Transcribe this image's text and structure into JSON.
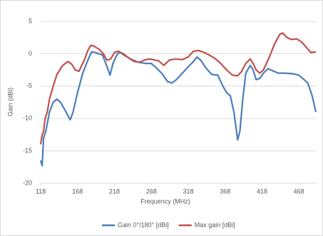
{
  "chart_data": {
    "type": "line",
    "x_label": "Frequency (MHz)",
    "y_label": "Gain (dBi)",
    "xlim": [
      118,
      491
    ],
    "xticks": [
      118,
      168,
      218,
      268,
      318,
      368,
      418,
      468
    ],
    "ylim": [
      -20,
      5
    ],
    "yticks": [
      -20,
      -15,
      -10,
      -5,
      0,
      5
    ],
    "grid": true,
    "legend": "bottom",
    "series": [
      {
        "name": "Gain 0°/180° [dBi]",
        "color": "#4a7ebb",
        "x": [
          118,
          120,
          122,
          125,
          130,
          135,
          140,
          145,
          150,
          158,
          162,
          168,
          175,
          182,
          187,
          192,
          197,
          202,
          208,
          212,
          216,
          222,
          226,
          232,
          240,
          250,
          260,
          268,
          275,
          282,
          290,
          296,
          302,
          310,
          318,
          325,
          330,
          335,
          342,
          350,
          358,
          365,
          370,
          375,
          380,
          385,
          388,
          392,
          396,
          402,
          406,
          410,
          415,
          420,
          426,
          432,
          440,
          450,
          460,
          468,
          475,
          480,
          486,
          491
        ],
        "values": [
          -16.5,
          -17.3,
          -13,
          -12,
          -9,
          -7.5,
          -7,
          -7.5,
          -8.5,
          -10.2,
          -9,
          -6,
          -3,
          -1,
          0.3,
          0.2,
          0,
          -0.2,
          -2,
          -3.3,
          -1.5,
          0,
          0.2,
          -0.3,
          -0.8,
          -1.3,
          -1.5,
          -1.5,
          -2.2,
          -3,
          -4.3,
          -4.5,
          -4,
          -3,
          -2,
          -1.2,
          -0.5,
          -1,
          -2.2,
          -3.2,
          -3.3,
          -5,
          -6,
          -6.5,
          -9,
          -13.3,
          -12,
          -7,
          -3,
          -1.8,
          -2.5,
          -4,
          -3.8,
          -3,
          -2.3,
          -2.6,
          -3,
          -3,
          -3.1,
          -3.3,
          -4,
          -4.5,
          -6.5,
          -9
        ]
      },
      {
        "name": "Max gain [dBi]",
        "color": "#c0504d",
        "x": [
          118,
          120,
          122,
          124,
          127,
          130,
          135,
          140,
          148,
          155,
          160,
          165,
          170,
          177,
          182,
          186,
          190,
          197,
          203,
          208,
          213,
          218,
          223,
          230,
          238,
          245,
          252,
          258,
          265,
          270,
          278,
          285,
          292,
          300,
          310,
          318,
          325,
          332,
          340,
          348,
          355,
          362,
          370,
          378,
          385,
          390,
          396,
          402,
          406,
          410,
          415,
          420,
          428,
          435,
          442,
          446,
          452,
          458,
          465,
          472,
          478,
          484,
          491
        ],
        "values": [
          -14,
          -12.5,
          -12,
          -10,
          -9,
          -7,
          -5,
          -3.2,
          -1.8,
          -1.2,
          -1.6,
          -2.5,
          -2.7,
          -1,
          0.5,
          1.3,
          1.2,
          0.7,
          0,
          -1,
          -0.8,
          0.2,
          0.4,
          0,
          -0.7,
          -1.2,
          -1.3,
          -1,
          -0.8,
          -0.9,
          -1.1,
          -1.8,
          -1,
          -0.8,
          -0.9,
          -0.5,
          0.4,
          0.5,
          0.2,
          -0.3,
          -0.8,
          -1.5,
          -2.5,
          -3.3,
          -3.4,
          -2.8,
          -1.5,
          -0.8,
          -1.5,
          -2.5,
          -3,
          -2.5,
          -0.5,
          1.5,
          3,
          3.2,
          2.5,
          2.2,
          2.3,
          1.8,
          1,
          0.2,
          0.3
        ]
      }
    ]
  }
}
